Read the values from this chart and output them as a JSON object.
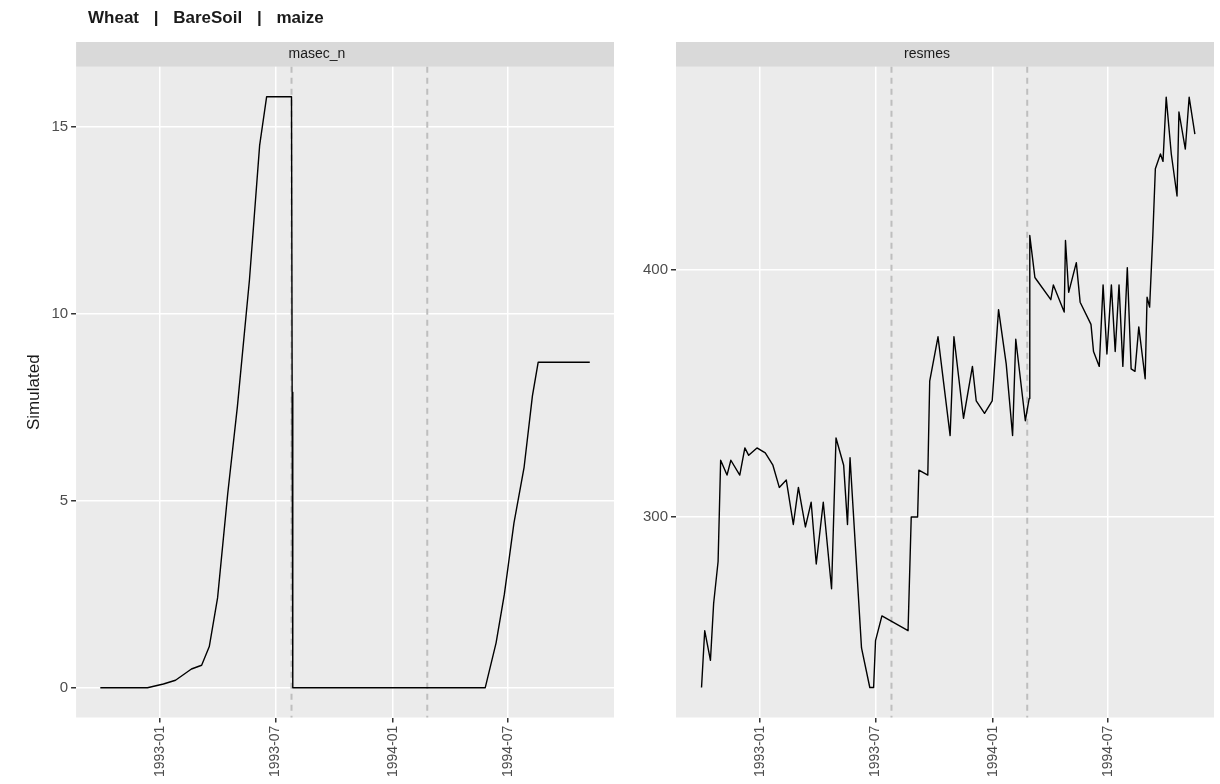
{
  "chart_data": [
    {
      "type": "line",
      "title": "Wheat | BareSoil | maize",
      "subtitle": "masec_n",
      "ylabel": "Simulated",
      "color": "#000000",
      "x": [
        "1992-09-29",
        "1992-12-12",
        "1993-01-06",
        "1993-01-25",
        "1993-02-19",
        "1993-03-07",
        "1993-03-19",
        "1993-04-01",
        "1993-04-17",
        "1993-05-02",
        "1993-05-21",
        "1993-06-06",
        "1993-06-17",
        "1993-07-26",
        "1993-07-27",
        "1993-07-28",
        "1994-05-26",
        "1994-06-12",
        "1994-06-25",
        "1994-07-10",
        "1994-07-26",
        "1994-08-08",
        "1994-08-17",
        "1994-11-06"
      ],
      "values": [
        0,
        0,
        0.1,
        0.2,
        0.5,
        0.6,
        1.1,
        2.4,
        5.2,
        7.5,
        10.9,
        14.5,
        15.8,
        15.8,
        7.9,
        0,
        0,
        1.2,
        2.5,
        4.4,
        5.9,
        7.8,
        8.7,
        8.7
      ],
      "xlim": [
        "1992-08-22",
        "1994-12-14"
      ],
      "xticks": [
        "1993-01",
        "1993-07",
        "1994-01",
        "1994-07"
      ],
      "ylim": [
        -0.8,
        16.6
      ],
      "yticks": [
        0,
        5,
        10,
        15
      ],
      "grid": true,
      "legend": false,
      "ref_lines": [
        {
          "axis": "x",
          "value": "1993-07-26",
          "color": "#bebebe",
          "line_style": "dashed"
        },
        {
          "axis": "x",
          "value": "1994-02-24",
          "color": "#bebebe",
          "line_style": "dashed"
        }
      ]
    },
    {
      "type": "line",
      "subtitle": "resmes",
      "color": "#000000",
      "x": [
        "1992-10-01",
        "1992-10-06",
        "1992-10-15",
        "1992-10-20",
        "1992-10-27",
        "1992-10-31",
        "1992-11-10",
        "1992-11-16",
        "1992-11-30",
        "1992-12-08",
        "1992-12-14",
        "1992-12-27",
        "1993-01-09",
        "1993-01-21",
        "1993-01-31",
        "1993-02-11",
        "1993-02-22",
        "1993-03-02",
        "1993-03-13",
        "1993-03-22",
        "1993-03-30",
        "1993-04-10",
        "1993-04-23",
        "1993-04-30",
        "1993-05-12",
        "1993-05-18",
        "1993-05-22",
        "1993-06-09",
        "1993-06-22",
        "1993-06-28",
        "1993-07-01",
        "1993-07-11",
        "1993-08-21",
        "1993-08-26",
        "1993-09-05",
        "1993-09-07",
        "1993-09-21",
        "1993-09-24",
        "1993-10-07",
        "1993-10-16",
        "1993-10-26",
        "1993-11-01",
        "1993-11-16",
        "1993-11-30",
        "1993-12-06",
        "1993-12-19",
        "1993-12-31",
        "1994-01-10",
        "1994-01-22",
        "1994-02-01",
        "1994-02-06",
        "1994-02-21",
        "1994-02-27",
        "1994-02-28",
        "1994-03-08",
        "1994-04-02",
        "1994-04-06",
        "1994-04-23",
        "1994-04-25",
        "1994-04-30",
        "1994-05-12",
        "1994-05-18",
        "1994-06-04",
        "1994-06-08",
        "1994-06-17",
        "1994-06-23",
        "1994-06-29",
        "1994-07-06",
        "1994-07-12",
        "1994-07-18",
        "1994-07-24",
        "1994-07-31",
        "1994-08-06",
        "1994-08-12",
        "1994-08-18",
        "1994-08-28",
        "1994-08-31",
        "1994-09-04",
        "1994-09-09",
        "1994-09-13",
        "1994-09-21",
        "1994-09-25",
        "1994-09-30",
        "1994-10-08",
        "1994-10-17",
        "1994-10-20",
        "1994-10-30",
        "1994-11-05",
        "1994-11-14"
      ],
      "values": [
        231,
        254,
        242,
        265,
        282,
        323,
        317,
        323,
        317,
        328,
        325,
        328,
        326,
        321,
        312,
        315,
        297,
        312,
        296,
        306,
        281,
        306,
        271,
        332,
        321,
        297,
        324,
        247,
        231,
        231,
        250,
        260,
        254,
        300,
        300,
        319,
        317,
        355,
        373,
        354,
        333,
        373,
        340,
        361,
        347,
        342,
        347,
        384,
        362,
        333,
        372,
        339,
        348,
        414,
        397,
        388,
        394,
        383,
        412,
        391,
        403,
        387,
        378,
        367,
        361,
        394,
        366,
        394,
        367,
        394,
        361,
        401,
        360,
        359,
        377,
        356,
        389,
        385,
        414,
        441,
        447,
        444,
        470,
        447,
        430,
        464,
        449,
        470,
        455
      ],
      "xlim": [
        "1992-08-22",
        "1994-12-14"
      ],
      "xticks": [
        "1993-01",
        "1993-07",
        "1994-01",
        "1994-07"
      ],
      "ylim": [
        218.8,
        482.3
      ],
      "yticks": [
        300,
        400
      ],
      "grid": true,
      "legend": false,
      "ref_lines": [
        {
          "axis": "x",
          "value": "1993-07-26",
          "color": "#bebebe",
          "line_style": "dashed"
        },
        {
          "axis": "x",
          "value": "1994-02-24",
          "color": "#bebebe",
          "line_style": "dashed"
        }
      ]
    }
  ]
}
